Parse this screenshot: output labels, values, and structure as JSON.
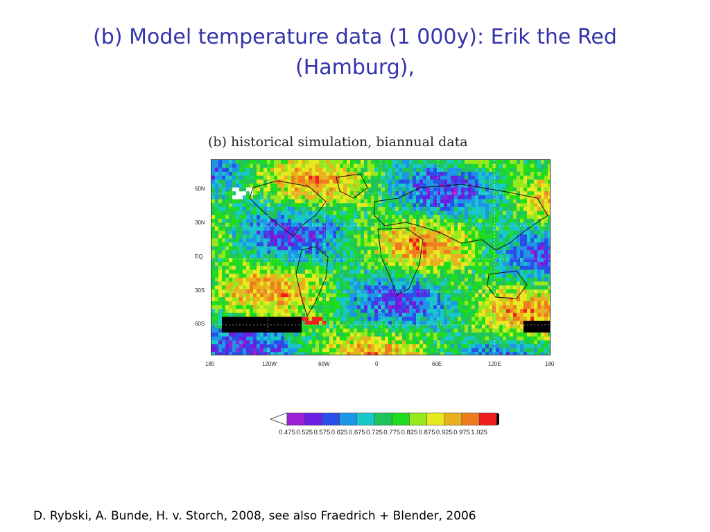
{
  "slide": {
    "title": "(b) Model temperature data (1 000y): Erik the Red (Hamburg),",
    "credit": "D. Rybski, A. Bunde, H. v. Storch, 2008, see also Fraedrich + Blender, 2006"
  },
  "chart_data": {
    "type": "heatmap",
    "title": "(b) historical simulation, biannual data",
    "xlabel": "",
    "ylabel": "",
    "x_ticks": [
      "180",
      "120W",
      "60W",
      "0",
      "60E",
      "120E",
      "180"
    ],
    "y_ticks": [
      "60N",
      "30N",
      "EQ",
      "30S",
      "60S"
    ],
    "colorbar": {
      "tick_labels": [
        "0.475",
        "0.525",
        "0.575",
        "0.625",
        "0.675",
        "0.725",
        "0.775",
        "0.825",
        "0.875",
        "0.925",
        "0.975",
        "1.025"
      ],
      "colors": [
        "#9b1fd6",
        "#6a1fe0",
        "#2a4fe8",
        "#1f95e8",
        "#18c8c8",
        "#1fc45a",
        "#1fdc1f",
        "#98e81f",
        "#e8e81f",
        "#e8b01f",
        "#f07a1f",
        "#f01f1f"
      ],
      "below_color": "#ffffff",
      "above_color": "#000000"
    },
    "grid": true,
    "continents": true
  }
}
